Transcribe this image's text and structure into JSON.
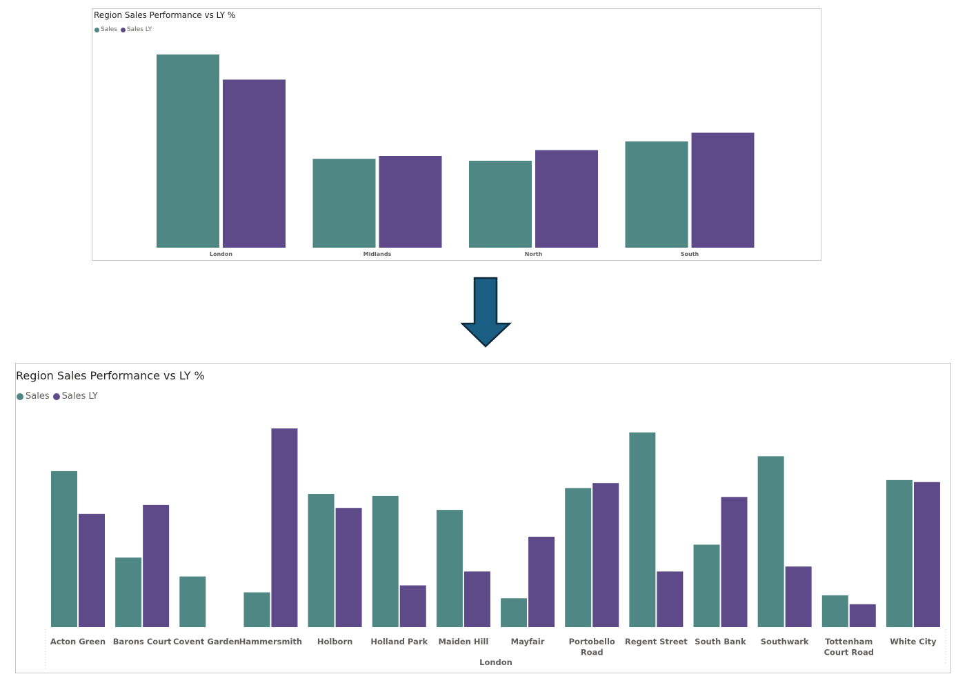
{
  "colors": {
    "sales": "#4e8784",
    "sales_ly": "#5e4a88",
    "arrow_fill": "#1b5e84",
    "arrow_stroke": "#0d2a3a"
  },
  "arrow": {
    "icon": "down-arrow-icon"
  },
  "chart_data": [
    {
      "type": "bar",
      "title": "Region Sales Performance vs LY %",
      "legend": {
        "placement": "top-left",
        "entries": [
          "Sales",
          "Sales LY"
        ]
      },
      "categories": [
        "London",
        "Midlands",
        "North",
        "South"
      ],
      "series": [
        {
          "name": "Sales",
          "values": [
            100,
            46,
            45,
            55
          ]
        },
        {
          "name": "Sales LY",
          "values": [
            87,
            47.5,
            50.5,
            59.5
          ]
        }
      ],
      "ylim": [
        0,
        100
      ],
      "grid": false
    },
    {
      "type": "bar",
      "title": "Region Sales Performance vs LY %",
      "legend": {
        "placement": "top-left",
        "entries": [
          "Sales",
          "Sales LY"
        ]
      },
      "xlabel": "London",
      "categories": [
        "Acton Green",
        "Barons Court",
        "Covent Garden",
        "Hammersmith",
        "Holborn",
        "Holland Park",
        "Maiden Hill",
        "Mayfair",
        "Portobello Road",
        "Regent Street",
        "South Bank",
        "Southwark",
        "Tottenham Court Road",
        "White City"
      ],
      "series": [
        {
          "name": "Sales",
          "values": [
            78.5,
            35,
            25.5,
            17.5,
            67,
            66,
            59,
            14.5,
            70,
            98,
            41.5,
            86,
            16,
            74
          ]
        },
        {
          "name": "Sales LY",
          "values": [
            57,
            61.5,
            0,
            100,
            60,
            21,
            28,
            45.5,
            72.5,
            28,
            65.5,
            30.5,
            11.5,
            73
          ]
        }
      ],
      "ylim": [
        0,
        100
      ],
      "grid": false
    }
  ]
}
